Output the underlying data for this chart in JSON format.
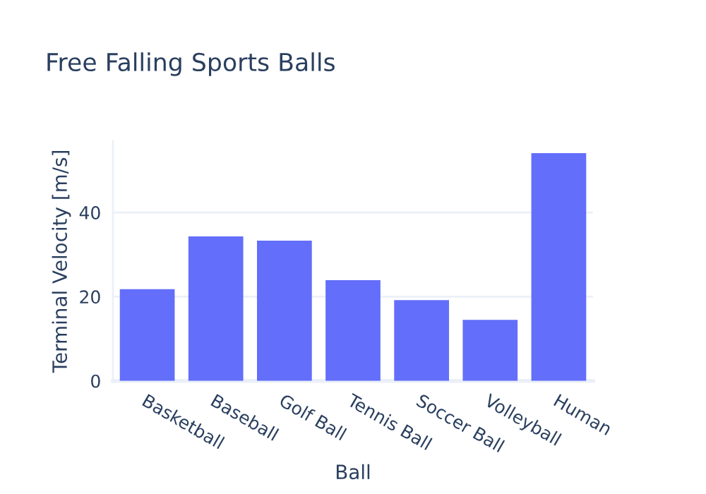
{
  "chart_data": {
    "type": "bar",
    "title": "Free Falling Sports Balls",
    "xlabel": "Ball",
    "ylabel": "Terminal Velocity [m/s]",
    "categories": [
      "Basketball",
      "Baseball",
      "Golf Ball",
      "Tennis Ball",
      "Soccer Ball",
      "Volleyball",
      "Human"
    ],
    "values": [
      21.8,
      34.3,
      33.3,
      23.9,
      19.2,
      14.5,
      54.1
    ],
    "color": "#636efa",
    "ylim": [
      0,
      56.9
    ],
    "yticks": [
      0,
      20,
      40
    ],
    "grid": "y"
  }
}
